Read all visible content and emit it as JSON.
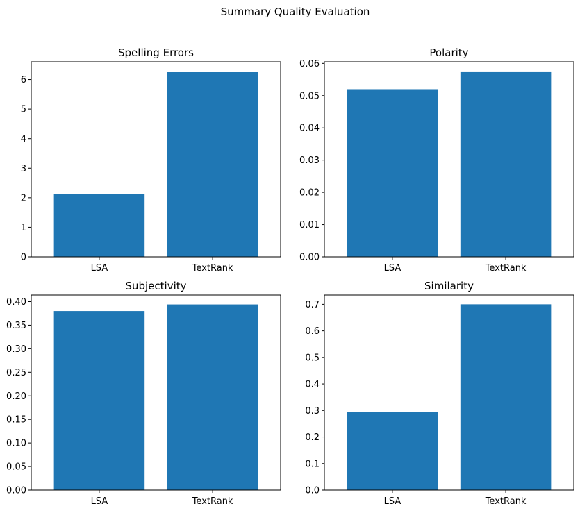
{
  "figure": {
    "suptitle": "Summary Quality Evaluation"
  },
  "colors": {
    "bar": "#1f77b4"
  },
  "chart_data": [
    {
      "type": "bar",
      "title": "Spelling Errors",
      "categories": [
        "LSA",
        "TextRank"
      ],
      "values": [
        2.12,
        6.25
      ],
      "ylim": [
        0,
        6.6
      ],
      "yticks": [
        0,
        1,
        2,
        3,
        4,
        5,
        6
      ],
      "ytick_labels": [
        "0",
        "1",
        "2",
        "3",
        "4",
        "5",
        "6"
      ],
      "xlabel": "",
      "ylabel": "",
      "grid": false
    },
    {
      "type": "bar",
      "title": "Polarity",
      "categories": [
        "LSA",
        "TextRank"
      ],
      "values": [
        0.052,
        0.0575
      ],
      "ylim": [
        0,
        0.0605
      ],
      "yticks": [
        0,
        0.01,
        0.02,
        0.03,
        0.04,
        0.05,
        0.06
      ],
      "ytick_labels": [
        "0.00",
        "0.01",
        "0.02",
        "0.03",
        "0.04",
        "0.05",
        "0.06"
      ],
      "xlabel": "",
      "ylabel": "",
      "grid": false
    },
    {
      "type": "bar",
      "title": "Subjectivity",
      "categories": [
        "LSA",
        "TextRank"
      ],
      "values": [
        0.38,
        0.394
      ],
      "ylim": [
        0,
        0.414
      ],
      "yticks": [
        0,
        0.05,
        0.1,
        0.15,
        0.2,
        0.25,
        0.3,
        0.35,
        0.4
      ],
      "ytick_labels": [
        "0.00",
        "0.05",
        "0.10",
        "0.15",
        "0.20",
        "0.25",
        "0.30",
        "0.35",
        "0.40"
      ],
      "xlabel": "",
      "ylabel": "",
      "grid": false
    },
    {
      "type": "bar",
      "title": "Similarity",
      "categories": [
        "LSA",
        "TextRank"
      ],
      "values": [
        0.293,
        0.7
      ],
      "ylim": [
        0,
        0.735
      ],
      "yticks": [
        0,
        0.1,
        0.2,
        0.3,
        0.4,
        0.5,
        0.6,
        0.7
      ],
      "ytick_labels": [
        "0.0",
        "0.1",
        "0.2",
        "0.3",
        "0.4",
        "0.5",
        "0.6",
        "0.7"
      ],
      "xlabel": "",
      "ylabel": "",
      "grid": false
    }
  ]
}
